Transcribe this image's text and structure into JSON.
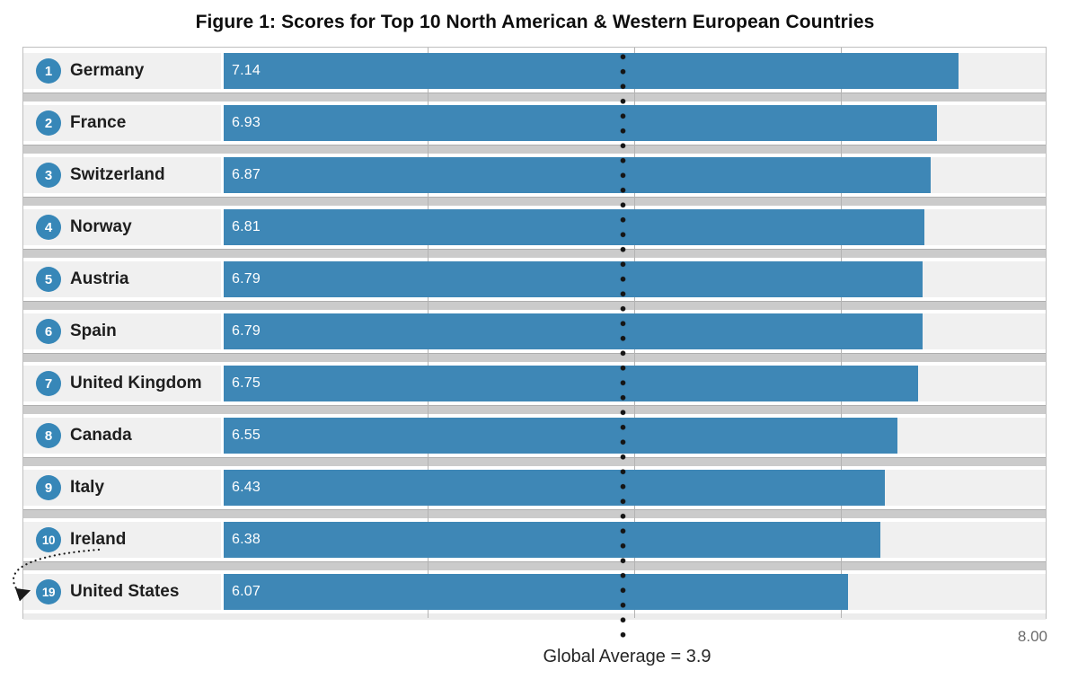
{
  "figure": {
    "title": "Figure 1: Scores for Top 10 North American & Western European Countries"
  },
  "chart_data": {
    "type": "bar",
    "orientation": "horizontal",
    "title": "Figure 1: Scores for Top 10 North American & Western European Countries",
    "categories": [
      "Germany",
      "France",
      "Switzerland",
      "Norway",
      "Austria",
      "Spain",
      "United Kingdom",
      "Canada",
      "Italy",
      "Ireland",
      "United States"
    ],
    "ranks": [
      1,
      2,
      3,
      4,
      5,
      6,
      7,
      8,
      9,
      10,
      19
    ],
    "values": [
      7.14,
      6.93,
      6.87,
      6.81,
      6.79,
      6.79,
      6.75,
      6.55,
      6.43,
      6.38,
      6.07
    ],
    "rows": [
      {
        "rank": "1",
        "country": "Germany",
        "value": "7.14"
      },
      {
        "rank": "2",
        "country": "France",
        "value": "6.93"
      },
      {
        "rank": "3",
        "country": "Switzerland",
        "value": "6.87"
      },
      {
        "rank": "4",
        "country": "Norway",
        "value": "6.81"
      },
      {
        "rank": "5",
        "country": "Austria",
        "value": "6.79"
      },
      {
        "rank": "6",
        "country": "Spain",
        "value": "6.79"
      },
      {
        "rank": "7",
        "country": "United Kingdom",
        "value": "6.75"
      },
      {
        "rank": "8",
        "country": "Canada",
        "value": "6.55"
      },
      {
        "rank": "9",
        "country": "Italy",
        "value": "6.43"
      },
      {
        "rank": "10",
        "country": "Ireland",
        "value": "6.38"
      },
      {
        "rank": "19",
        "country": "United States",
        "value": "6.07"
      }
    ],
    "xlim": [
      0,
      8
    ],
    "axis_max_label": "8.00",
    "gridline_values": [
      2,
      4,
      6
    ],
    "grid": true,
    "legend": false,
    "average_line": {
      "label": "Global Average = 3.9",
      "value": 3.9
    },
    "colors": {
      "bar": "#3e87b6",
      "badge": "#3787b8",
      "row_bg": "#f0f0f0",
      "separator_band": "#cbcbcb",
      "average_dots": "#151515",
      "axis_text": "#6a6a6a"
    }
  },
  "icons": {
    "rank_jump_arrow": "dotted-curved-arrow"
  }
}
